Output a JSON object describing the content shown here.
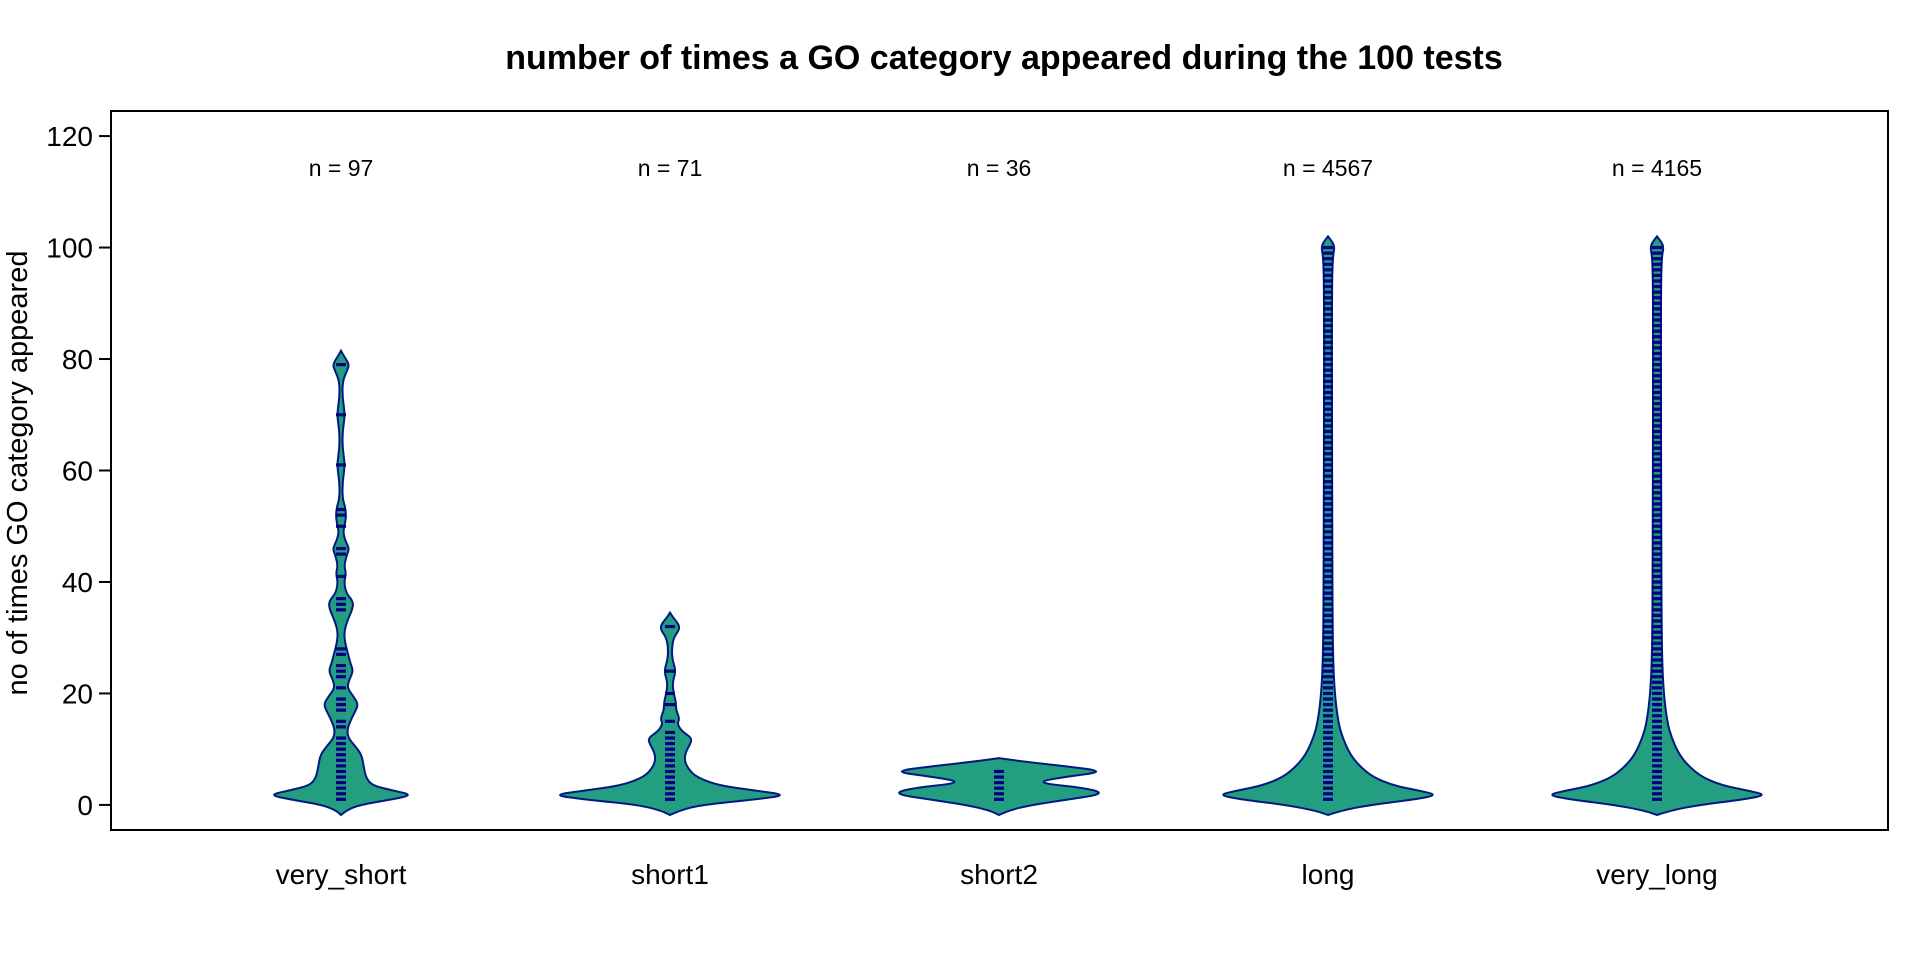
{
  "chart_data": {
    "type": "violin",
    "title": "number of times a GO category appeared during the 100 tests",
    "xlabel": "",
    "ylabel": "no of times GO category appeared",
    "ylim": [
      -4.5,
      124.5
    ],
    "yticks": [
      0,
      20,
      40,
      60,
      80,
      100,
      120
    ],
    "categories": [
      "very_short",
      "short1",
      "short2",
      "long",
      "very_long"
    ],
    "n_labels": [
      "n = 97",
      "n = 71",
      "n = 36",
      "n = 4567",
      "n = 4165"
    ],
    "n": [
      97,
      71,
      36,
      4567,
      4165
    ],
    "series": [
      {
        "category": "very_short",
        "min": 1,
        "max": 79,
        "mode": 2,
        "distinct_values": [
          1,
          2,
          3,
          4,
          5,
          6,
          7,
          8,
          9,
          10,
          11,
          12,
          14,
          15,
          17,
          18,
          19,
          21,
          23,
          24,
          25,
          27,
          28,
          35,
          36,
          37,
          41,
          45,
          46,
          50,
          52,
          53,
          61,
          70,
          79
        ]
      },
      {
        "category": "short1",
        "min": 1,
        "max": 32,
        "mode": 2,
        "distinct_values": [
          1,
          2,
          3,
          4,
          5,
          6,
          7,
          8,
          9,
          10,
          11,
          12,
          13,
          15,
          18,
          20,
          24,
          32
        ]
      },
      {
        "category": "short2",
        "min": 1,
        "max": 6,
        "mode": 6,
        "distinct_values": [
          1,
          2,
          3,
          4,
          5,
          6
        ]
      },
      {
        "category": "long",
        "min": 1,
        "max": 100,
        "mode": 2,
        "distinct_values": "1-100"
      },
      {
        "category": "very_long",
        "min": 1,
        "max": 100,
        "mode": 2,
        "distinct_values": "1-100"
      }
    ],
    "colors": {
      "fill": "#249e80",
      "outline": "#001a80",
      "points": "#000080"
    },
    "grid": false,
    "legend": "none"
  }
}
